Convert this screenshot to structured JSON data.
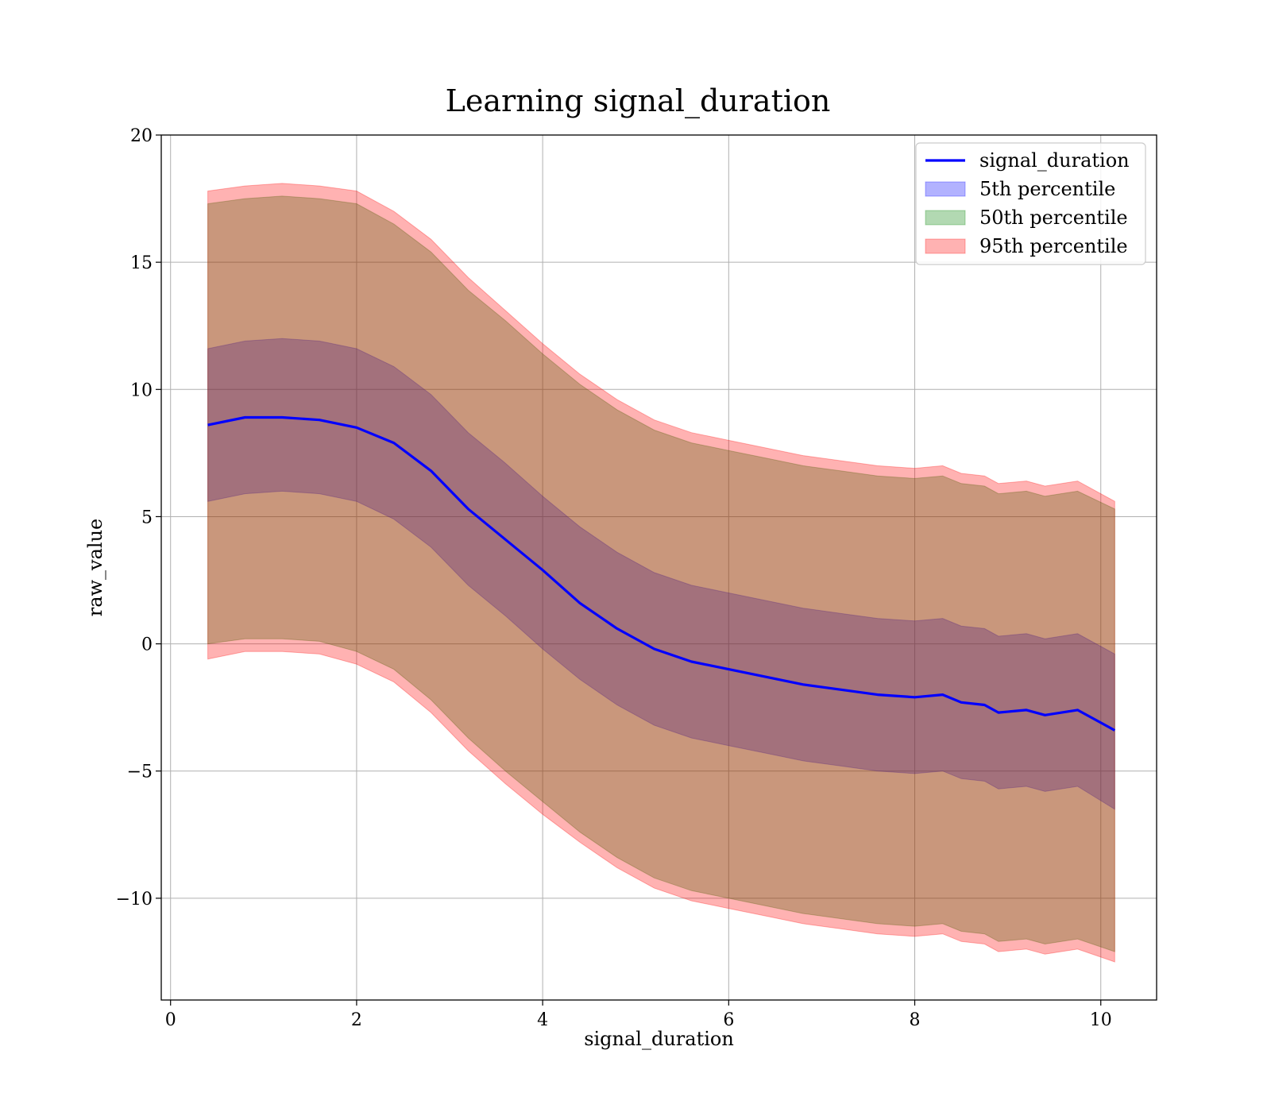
{
  "chart_data": {
    "type": "area",
    "title": "Learning signal_duration",
    "xlabel": "signal_duration",
    "ylabel": "raw_value",
    "xlim": [
      -0.1,
      10.6
    ],
    "ylim": [
      -14,
      20
    ],
    "x_ticks": [
      0,
      2,
      4,
      6,
      8,
      10
    ],
    "y_ticks": [
      -10,
      -5,
      0,
      5,
      10,
      15,
      20
    ],
    "x_tick_labels": [
      "0",
      "2",
      "4",
      "6",
      "8",
      "10"
    ],
    "y_tick_labels": [
      "−10",
      "−5",
      "0",
      "5",
      "10",
      "15",
      "20"
    ],
    "grid": true,
    "legend_placement": "top-right",
    "legend": [
      "signal_duration",
      "5th percentile",
      "50th percentile",
      "95th percentile"
    ],
    "colors": {
      "line": "#0000ff",
      "p5": "#0000ff",
      "p50": "#008000",
      "p95": "#ff0000"
    },
    "x": [
      0.4,
      0.8,
      1.2,
      1.6,
      2.0,
      2.4,
      2.8,
      3.2,
      3.6,
      4.0,
      4.4,
      4.8,
      5.2,
      5.6,
      6.0,
      6.4,
      6.8,
      7.2,
      7.6,
      8.0,
      8.3,
      8.5,
      8.75,
      8.9,
      9.2,
      9.4,
      9.75,
      10.15
    ],
    "series": [
      {
        "name": "signal_duration",
        "values": [
          8.6,
          8.9,
          8.9,
          8.8,
          8.5,
          7.9,
          6.8,
          5.3,
          4.1,
          2.9,
          1.6,
          0.6,
          -0.2,
          -0.7,
          -1.0,
          -1.3,
          -1.6,
          -1.8,
          -2.0,
          -2.1,
          -2.0,
          -2.3,
          -2.4,
          -2.7,
          -2.6,
          -2.8,
          -2.6,
          -3.4
        ]
      }
    ],
    "bands": [
      {
        "name": "5th percentile",
        "lower": [
          5.6,
          5.9,
          6.0,
          5.9,
          5.6,
          4.9,
          3.8,
          2.3,
          1.1,
          -0.2,
          -1.4,
          -2.4,
          -3.2,
          -3.7,
          -4.0,
          -4.3,
          -4.6,
          -4.8,
          -5.0,
          -5.1,
          -5.0,
          -5.3,
          -5.4,
          -5.7,
          -5.6,
          -5.8,
          -5.6,
          -6.5
        ],
        "upper": [
          11.6,
          11.9,
          12.0,
          11.9,
          11.6,
          10.9,
          9.8,
          8.3,
          7.1,
          5.8,
          4.6,
          3.6,
          2.8,
          2.3,
          2.0,
          1.7,
          1.4,
          1.2,
          1.0,
          0.9,
          1.0,
          0.7,
          0.6,
          0.3,
          0.4,
          0.2,
          0.4,
          -0.4
        ]
      },
      {
        "name": "50th percentile",
        "lower": [
          0.0,
          0.2,
          0.2,
          0.1,
          -0.3,
          -1.0,
          -2.2,
          -3.7,
          -5.0,
          -6.2,
          -7.4,
          -8.4,
          -9.2,
          -9.7,
          -10.0,
          -10.3,
          -10.6,
          -10.8,
          -11.0,
          -11.1,
          -11.0,
          -11.3,
          -11.4,
          -11.7,
          -11.6,
          -11.8,
          -11.6,
          -12.1
        ],
        "upper": [
          17.3,
          17.5,
          17.6,
          17.5,
          17.3,
          16.5,
          15.4,
          13.9,
          12.7,
          11.4,
          10.2,
          9.2,
          8.4,
          7.9,
          7.6,
          7.3,
          7.0,
          6.8,
          6.6,
          6.5,
          6.6,
          6.3,
          6.2,
          5.9,
          6.0,
          5.8,
          6.0,
          5.3
        ]
      },
      {
        "name": "95th percentile",
        "lower": [
          -0.6,
          -0.3,
          -0.3,
          -0.4,
          -0.8,
          -1.5,
          -2.7,
          -4.2,
          -5.5,
          -6.7,
          -7.8,
          -8.8,
          -9.6,
          -10.1,
          -10.4,
          -10.7,
          -11.0,
          -11.2,
          -11.4,
          -11.5,
          -11.4,
          -11.7,
          -11.8,
          -12.1,
          -12.0,
          -12.2,
          -12.0,
          -12.5
        ],
        "upper": [
          17.8,
          18.0,
          18.1,
          18.0,
          17.8,
          17.0,
          15.9,
          14.4,
          13.1,
          11.8,
          10.6,
          9.6,
          8.8,
          8.3,
          8.0,
          7.7,
          7.4,
          7.2,
          7.0,
          6.9,
          7.0,
          6.7,
          6.6,
          6.3,
          6.4,
          6.2,
          6.4,
          5.6
        ]
      }
    ]
  }
}
